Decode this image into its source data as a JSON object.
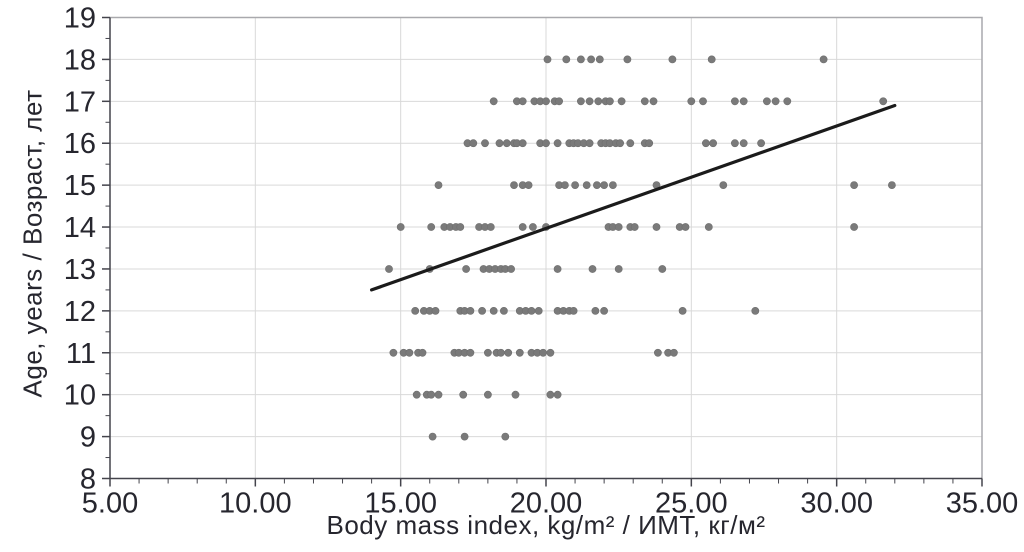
{
  "chart_data": {
    "type": "scatter",
    "title": "",
    "xlabel": "Body mass index, kg/m² / ИМТ, кг/м²",
    "ylabel": "Age, years / Возраст, лет",
    "xlim": [
      5,
      35
    ],
    "ylim": [
      8,
      19
    ],
    "x_major_ticks": [
      5,
      10,
      15,
      20,
      25,
      30,
      35
    ],
    "x_tick_labels": [
      "5.00",
      "10.00",
      "15.00",
      "20.00",
      "25.00",
      "30.00",
      "35.00"
    ],
    "x_minor_step": 1,
    "y_major_ticks": [
      8,
      9,
      10,
      11,
      12,
      13,
      14,
      15,
      16,
      17,
      18,
      19
    ],
    "y_tick_labels": [
      "8",
      "9",
      "10",
      "11",
      "12",
      "13",
      "14",
      "15",
      "16",
      "17",
      "18",
      "19"
    ],
    "y_minor_step": 0.5,
    "grid": "major",
    "legend": "none",
    "series": [
      {
        "name": "observations",
        "kind": "scatter",
        "points_by_age": [
          {
            "age": 18,
            "bmi": [
              20.05,
              20.7,
              21.2,
              21.55,
              21.85,
              22.8,
              24.35,
              25.7,
              29.55
            ]
          },
          {
            "age": 17,
            "bmi": [
              18.2,
              19.0,
              19.2,
              19.6,
              19.8,
              20.0,
              20.3,
              20.45,
              21.2,
              21.5,
              21.8,
              22.05,
              22.2,
              22.6,
              23.4,
              23.7,
              25.0,
              25.4,
              26.5,
              26.8,
              27.6,
              27.9,
              28.3,
              31.6
            ]
          },
          {
            "age": 16,
            "bmi": [
              17.3,
              17.5,
              17.9,
              18.4,
              18.65,
              18.9,
              19.0,
              19.2,
              19.8,
              20.0,
              20.4,
              20.8,
              20.95,
              21.1,
              21.3,
              21.5,
              21.9,
              22.05,
              22.2,
              22.4,
              22.55,
              22.9,
              23.4,
              23.55,
              25.5,
              25.75,
              26.5,
              26.8,
              27.4
            ]
          },
          {
            "age": 15,
            "bmi": [
              16.3,
              18.9,
              19.2,
              19.4,
              20.45,
              20.65,
              21.0,
              21.4,
              21.75,
              22.0,
              22.3,
              23.8,
              26.1,
              30.6,
              31.9
            ]
          },
          {
            "age": 14,
            "bmi": [
              15.0,
              16.05,
              16.5,
              16.7,
              16.9,
              17.05,
              17.7,
              17.9,
              18.1,
              19.2,
              19.55,
              20.0,
              22.15,
              22.3,
              22.5,
              22.9,
              23.05,
              23.8,
              24.6,
              24.8,
              25.6,
              30.6
            ]
          },
          {
            "age": 13,
            "bmi": [
              14.6,
              16.0,
              17.25,
              17.85,
              18.05,
              18.25,
              18.45,
              18.6,
              18.8,
              20.4,
              21.6,
              22.5,
              24.0
            ]
          },
          {
            "age": 12,
            "bmi": [
              15.5,
              15.8,
              16.0,
              16.2,
              17.05,
              17.2,
              17.4,
              17.8,
              18.2,
              18.55,
              19.1,
              19.3,
              19.5,
              19.75,
              20.4,
              20.6,
              20.8,
              20.95,
              21.7,
              22.0,
              24.7,
              27.2
            ]
          },
          {
            "age": 11,
            "bmi": [
              14.75,
              15.1,
              15.3,
              15.6,
              15.75,
              16.85,
              17.0,
              17.2,
              17.4,
              18.0,
              18.3,
              18.45,
              18.7,
              19.1,
              19.5,
              19.7,
              19.9,
              20.15,
              23.85,
              24.2,
              24.4
            ]
          },
          {
            "age": 10,
            "bmi": [
              15.55,
              15.9,
              16.05,
              16.3,
              17.15,
              18.0,
              18.95,
              20.15,
              20.4
            ]
          },
          {
            "age": 9,
            "bmi": [
              16.1,
              17.2,
              18.6
            ]
          }
        ]
      },
      {
        "name": "trend-line",
        "kind": "line",
        "x": [
          14.0,
          32.0
        ],
        "y": [
          12.5,
          16.9
        ]
      }
    ],
    "colors": {
      "point": "#7a7a7a",
      "point_edge": "#6f6f6f",
      "trend_line": "#1b1b1b",
      "grid": "#d9d9d9",
      "axis": "#44444c",
      "border": "#a9a9ad",
      "text": "#26262e",
      "background": "#ffffff"
    }
  }
}
